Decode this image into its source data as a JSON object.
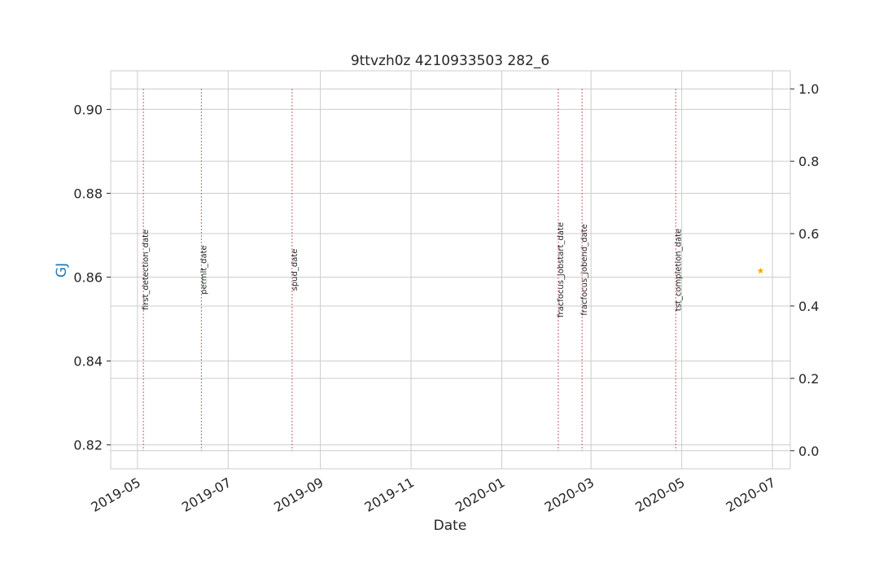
{
  "chart_data": {
    "type": "scatter",
    "title": "9ttvzh0z 4210933503 282_6",
    "xlabel": "Date",
    "ylabel": "GJ",
    "ylabel_color": "#1f77b4",
    "xlim": [
      "2019-04-13",
      "2020-07-13"
    ],
    "ylim": [
      0.8143,
      0.9092
    ],
    "y2lim": [
      -0.05,
      1.05
    ],
    "x_ticks": [
      "2019-05-01",
      "2019-07-01",
      "2019-09-01",
      "2019-11-01",
      "2020-01-01",
      "2020-03-01",
      "2020-05-01",
      "2020-07-01"
    ],
    "x_tick_labels": [
      "2019-05",
      "2019-07",
      "2019-09",
      "2019-11",
      "2020-01",
      "2020-03",
      "2020-05",
      "2020-07"
    ],
    "y_ticks": [
      0.82,
      0.84,
      0.86,
      0.88,
      0.9
    ],
    "y_tick_labels": [
      "0.82",
      "0.84",
      "0.86",
      "0.88",
      "0.90"
    ],
    "y2_ticks": [
      0.0,
      0.2,
      0.4,
      0.6,
      0.8,
      1.0
    ],
    "y2_tick_labels": [
      "0.0",
      "0.2",
      "0.4",
      "0.6",
      "0.8",
      "1.0"
    ],
    "grid": true,
    "series": [
      {
        "marker": "star",
        "color": "#ffa500",
        "points": [
          {
            "x": "2020-06-23",
            "y": 0.8615
          }
        ]
      }
    ],
    "events": [
      {
        "label": "first_detection_date",
        "date": "2019-05-05"
      },
      {
        "label": "permit_date",
        "date": "2019-06-13"
      },
      {
        "label": "spud_date",
        "date": "2019-08-13"
      },
      {
        "label": "fracfocus_jobstart_date",
        "date": "2020-02-08"
      },
      {
        "label": "fracfocus_jobend_date",
        "date": "2020-02-24"
      },
      {
        "label": "tst_completion_date",
        "date": "2020-04-27"
      }
    ],
    "event_line_color": "#c44e52"
  }
}
